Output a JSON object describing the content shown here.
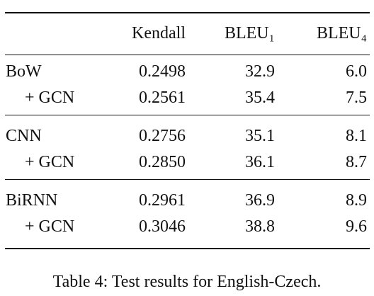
{
  "table": {
    "header": [
      "",
      "Kendall",
      "BLEU₁",
      "BLEU₄"
    ],
    "groups": [
      {
        "rows": [
          [
            "BoW",
            "0.2498",
            "32.9",
            "6.0"
          ],
          [
            "+ GCN",
            "0.2561",
            "35.4",
            "7.5"
          ]
        ]
      },
      {
        "rows": [
          [
            "CNN",
            "0.2756",
            "35.1",
            "8.1"
          ],
          [
            "+ GCN",
            "0.2850",
            "36.1",
            "8.7"
          ]
        ]
      },
      {
        "rows": [
          [
            "BiRNN",
            "0.2961",
            "36.9",
            "8.9"
          ],
          [
            "+ GCN",
            "0.3046",
            "38.8",
            "9.6"
          ]
        ]
      }
    ]
  },
  "caption": "Table 4: Test results for English-Czech."
}
